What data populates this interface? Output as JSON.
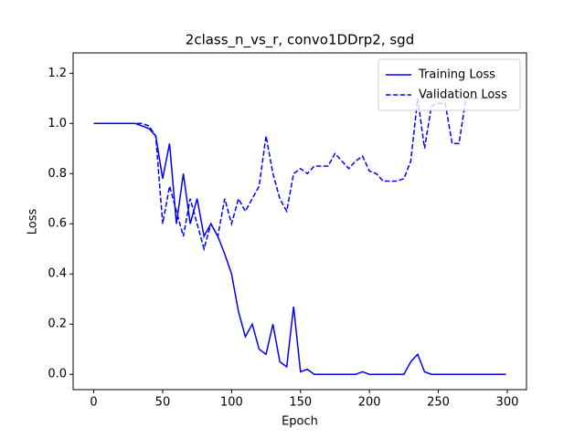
{
  "chart_data": {
    "type": "line",
    "title": "2class_n_vs_r, convo1DDrp2, sgd",
    "x_label": "Epoch",
    "y_label": "Loss",
    "x": [
      0,
      5,
      10,
      15,
      20,
      25,
      30,
      35,
      40,
      45,
      50,
      55,
      60,
      65,
      70,
      75,
      80,
      85,
      90,
      95,
      100,
      105,
      110,
      115,
      120,
      125,
      130,
      135,
      140,
      145,
      150,
      155,
      160,
      165,
      170,
      175,
      180,
      185,
      190,
      195,
      200,
      205,
      210,
      215,
      220,
      225,
      230,
      235,
      240,
      245,
      250,
      255,
      260,
      265,
      270,
      275,
      280,
      285,
      290,
      295,
      299
    ],
    "series": [
      {
        "name": "Training Loss",
        "color": "#0000ff",
        "linestyle": "solid",
        "values": [
          1.0,
          1.0,
          1.0,
          1.0,
          1.0,
          1.0,
          1.0,
          0.99,
          0.98,
          0.95,
          0.78,
          0.92,
          0.6,
          0.8,
          0.6,
          0.7,
          0.55,
          0.6,
          0.55,
          0.48,
          0.4,
          0.25,
          0.15,
          0.2,
          0.1,
          0.08,
          0.2,
          0.05,
          0.03,
          0.27,
          0.01,
          0.02,
          0.0,
          0.0,
          0.0,
          0.0,
          0.0,
          0.0,
          0.0,
          0.01,
          0.0,
          0.0,
          0.0,
          0.0,
          0.0,
          0.0,
          0.05,
          0.08,
          0.01,
          0.0,
          0.0,
          0.0,
          0.0,
          0.0,
          0.0,
          0.0,
          0.0,
          0.0,
          0.0,
          0.0,
          0.0
        ]
      },
      {
        "name": "Validation Loss",
        "color": "#0000ff",
        "linestyle": "dashed",
        "values": [
          1.0,
          1.0,
          1.0,
          1.0,
          1.0,
          1.0,
          1.0,
          1.0,
          0.99,
          0.95,
          0.6,
          0.75,
          0.65,
          0.55,
          0.7,
          0.6,
          0.5,
          0.6,
          0.55,
          0.7,
          0.6,
          0.7,
          0.65,
          0.7,
          0.75,
          0.95,
          0.8,
          0.7,
          0.65,
          0.8,
          0.82,
          0.8,
          0.83,
          0.83,
          0.83,
          0.88,
          0.85,
          0.82,
          0.85,
          0.87,
          0.81,
          0.8,
          0.77,
          0.77,
          0.77,
          0.78,
          0.85,
          1.1,
          0.9,
          1.07,
          1.08,
          1.08,
          0.92,
          0.92,
          1.1,
          1.1,
          1.1,
          1.1,
          1.1,
          1.1,
          1.1
        ]
      }
    ],
    "xlim": [
      -14.95,
      313.95
    ],
    "ylim": [
      -0.061,
      1.281
    ],
    "xticks": [
      0,
      50,
      100,
      150,
      200,
      250,
      300
    ],
    "yticks": [
      {
        "value": 0,
        "label": "0.0"
      },
      {
        "value": 0.2,
        "label": "0.2"
      },
      {
        "value": 0.4,
        "label": "0.4"
      },
      {
        "value": 0.6,
        "label": "0.6"
      },
      {
        "value": 0.8,
        "label": "0.8"
      },
      {
        "value": 1.0,
        "label": "1.0"
      },
      {
        "value": 1.2,
        "label": "1.2"
      }
    ],
    "grid": false,
    "legend": "upper right"
  }
}
